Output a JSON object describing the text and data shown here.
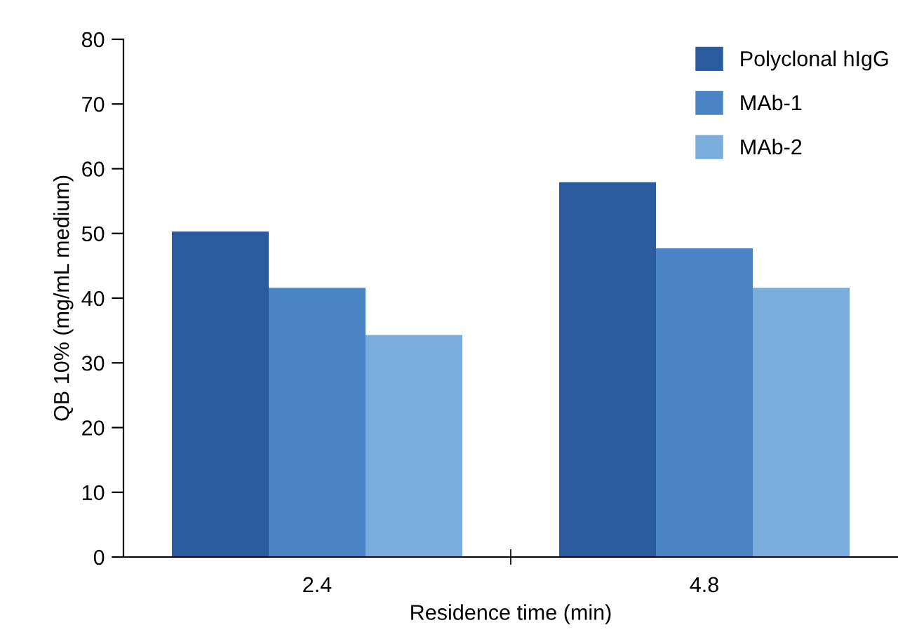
{
  "chart_data": {
    "type": "bar",
    "xlabel": "Residence time (min)",
    "ylabel": "QB 10% (mg/mL medium)",
    "categories": [
      "2.4",
      "4.8"
    ],
    "series": [
      {
        "name": "Polyclonal hIgG",
        "color": "#2a5b9e",
        "values": [
          50.3,
          57.9
        ]
      },
      {
        "name": "MAb-1",
        "color": "#4a84c4",
        "values": [
          41.6,
          47.7
        ]
      },
      {
        "name": "MAb-2",
        "color": "#7aaddc",
        "values": [
          34.3,
          41.6
        ]
      }
    ],
    "ylim": [
      0,
      80
    ],
    "yticks": [
      0,
      10,
      20,
      30,
      40,
      50,
      60,
      70,
      80
    ],
    "grid": false,
    "legend": "top right"
  }
}
